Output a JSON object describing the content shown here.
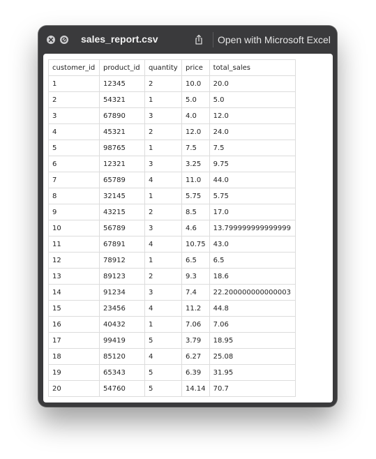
{
  "window": {
    "title": "sales_report.csv",
    "open_with_label": "Open with Microsoft Excel"
  },
  "icons": {
    "close": "close-icon",
    "block": "block-icon",
    "share": "share-icon"
  },
  "colors": {
    "window_chrome": "#3a3a3c",
    "content_background": "#ffffff",
    "grid_line": "#dcdcdc",
    "text": "#222222"
  },
  "table": {
    "headers": [
      "customer_id",
      "product_id",
      "quantity",
      "price",
      "total_sales"
    ],
    "rows": [
      [
        "1",
        "12345",
        "2",
        "10.0",
        "20.0"
      ],
      [
        "2",
        "54321",
        "1",
        "5.0",
        "5.0"
      ],
      [
        "3",
        "67890",
        "3",
        "4.0",
        "12.0"
      ],
      [
        "4",
        "45321",
        "2",
        "12.0",
        "24.0"
      ],
      [
        "5",
        "98765",
        "1",
        "7.5",
        "7.5"
      ],
      [
        "6",
        "12321",
        "3",
        "3.25",
        "9.75"
      ],
      [
        "7",
        "65789",
        "4",
        "11.0",
        "44.0"
      ],
      [
        "8",
        "32145",
        "1",
        "5.75",
        "5.75"
      ],
      [
        "9",
        "43215",
        "2",
        "8.5",
        "17.0"
      ],
      [
        "10",
        "56789",
        "3",
        "4.6",
        "13.799999999999999"
      ],
      [
        "11",
        "67891",
        "4",
        "10.75",
        "43.0"
      ],
      [
        "12",
        "78912",
        "1",
        "6.5",
        "6.5"
      ],
      [
        "13",
        "89123",
        "2",
        "9.3",
        "18.6"
      ],
      [
        "14",
        "91234",
        "3",
        "7.4",
        "22.200000000000003"
      ],
      [
        "15",
        "23456",
        "4",
        "11.2",
        "44.8"
      ],
      [
        "16",
        "40432",
        "1",
        "7.06",
        "7.06"
      ],
      [
        "17",
        "99419",
        "5",
        "3.79",
        "18.95"
      ],
      [
        "18",
        "85120",
        "4",
        "6.27",
        "25.08"
      ],
      [
        "19",
        "65343",
        "5",
        "6.39",
        "31.95"
      ],
      [
        "20",
        "54760",
        "5",
        "14.14",
        "70.7"
      ]
    ]
  }
}
